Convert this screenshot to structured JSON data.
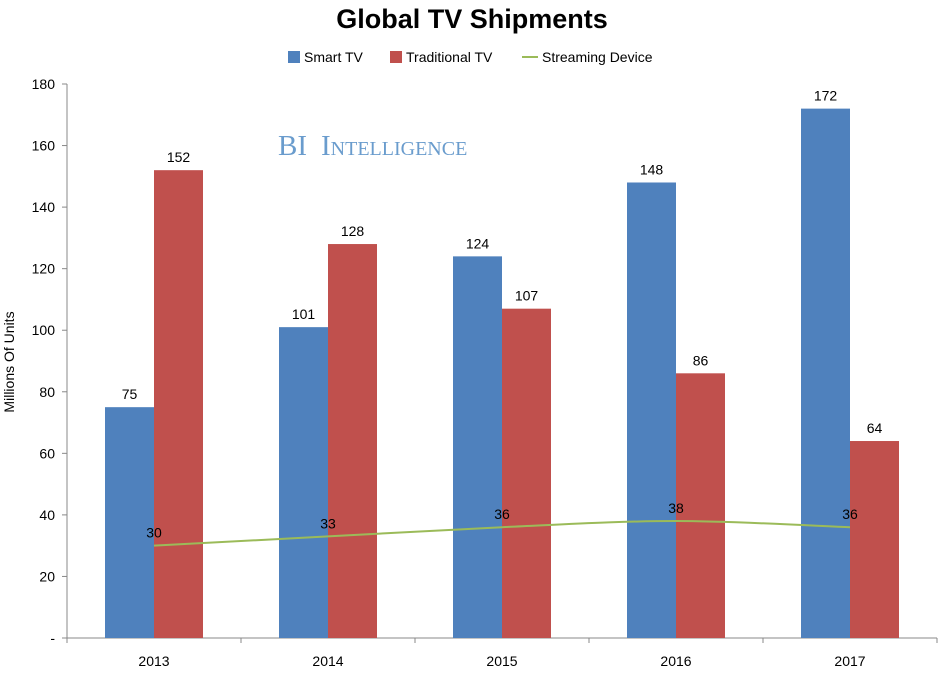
{
  "chart_data": {
    "type": "bar",
    "title": "Global TV Shipments",
    "ylabel": "Millions Of Units",
    "xlabel": "",
    "categories": [
      "2013",
      "2014",
      "2015",
      "2016",
      "2017"
    ],
    "ylim": [
      0,
      180
    ],
    "yticks": [
      "-",
      "20",
      "40",
      "60",
      "80",
      "100",
      "120",
      "140",
      "160",
      "180"
    ],
    "series": [
      {
        "name": "Smart TV",
        "type": "bar",
        "color": "#4f81bd",
        "values": [
          75,
          101,
          124,
          148,
          172
        ]
      },
      {
        "name": "Traditional TV",
        "type": "bar",
        "color": "#c0504d",
        "values": [
          152,
          128,
          107,
          86,
          64
        ]
      },
      {
        "name": "Streaming Device",
        "type": "line",
        "color": "#9bbb59",
        "values": [
          30,
          33,
          36,
          38,
          36
        ]
      }
    ],
    "legend_position": "top-center",
    "grid": false
  },
  "watermark": {
    "first": "BI",
    "second": "Intelligence"
  }
}
